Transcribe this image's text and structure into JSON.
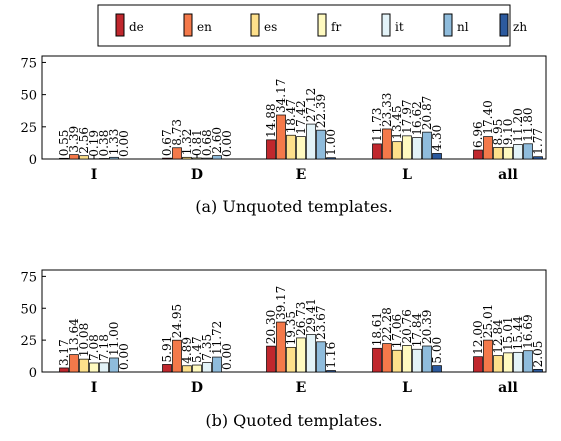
{
  "colors": {
    "de": "#c0272d",
    "en": "#f4794a",
    "es": "#fde08b",
    "fr": "#fffac0",
    "it": "#e3f3f8",
    "nl": "#8fbcdc",
    "zh": "#2c5a9e"
  },
  "chart_data": [
    {
      "type": "bar",
      "caption": "(a) Unquoted templates.",
      "categories": [
        "I",
        "D",
        "E",
        "L",
        "all"
      ],
      "ylim": [
        0,
        80
      ],
      "yticks": [
        0,
        25,
        50,
        75
      ],
      "grid": false,
      "legend": "top-center",
      "series": [
        {
          "name": "de",
          "values": [
            0.55,
            0.67,
            14.88,
            11.73,
            6.96
          ]
        },
        {
          "name": "en",
          "values": [
            3.39,
            8.73,
            34.17,
            23.33,
            17.4
          ]
        },
        {
          "name": "es",
          "values": [
            2.56,
            1.32,
            18.47,
            13.45,
            8.95
          ]
        },
        {
          "name": "fr",
          "values": [
            0.19,
            0.81,
            17.42,
            17.97,
            9.1
          ]
        },
        {
          "name": "it",
          "values": [
            0.38,
            0.68,
            27.12,
            16.62,
            11.2
          ]
        },
        {
          "name": "nl",
          "values": [
            1.33,
            2.6,
            22.39,
            20.87,
            11.8
          ]
        },
        {
          "name": "zh",
          "values": [
            0.0,
            0.0,
            1.0,
            4.3,
            1.77
          ]
        }
      ]
    },
    {
      "type": "bar",
      "caption": "(b) Quoted templates.",
      "categories": [
        "I",
        "D",
        "E",
        "L",
        "all"
      ],
      "ylim": [
        0,
        80
      ],
      "yticks": [
        0,
        25,
        50,
        75
      ],
      "grid": false,
      "series": [
        {
          "name": "de",
          "values": [
            3.17,
            5.91,
            20.3,
            18.61,
            12.0
          ]
        },
        {
          "name": "en",
          "values": [
            13.64,
            24.95,
            39.17,
            22.28,
            25.01
          ]
        },
        {
          "name": "es",
          "values": [
            10.08,
            4.89,
            19.35,
            17.06,
            12.84
          ]
        },
        {
          "name": "fr",
          "values": [
            7.08,
            5.47,
            26.73,
            20.76,
            15.01
          ]
        },
        {
          "name": "it",
          "values": [
            7.18,
            7.35,
            29.41,
            17.84,
            15.44
          ]
        },
        {
          "name": "nl",
          "values": [
            11.0,
            11.72,
            23.67,
            20.39,
            16.69
          ]
        },
        {
          "name": "zh",
          "values": [
            0.0,
            0.0,
            1.16,
            5.0,
            2.05
          ]
        }
      ]
    }
  ]
}
